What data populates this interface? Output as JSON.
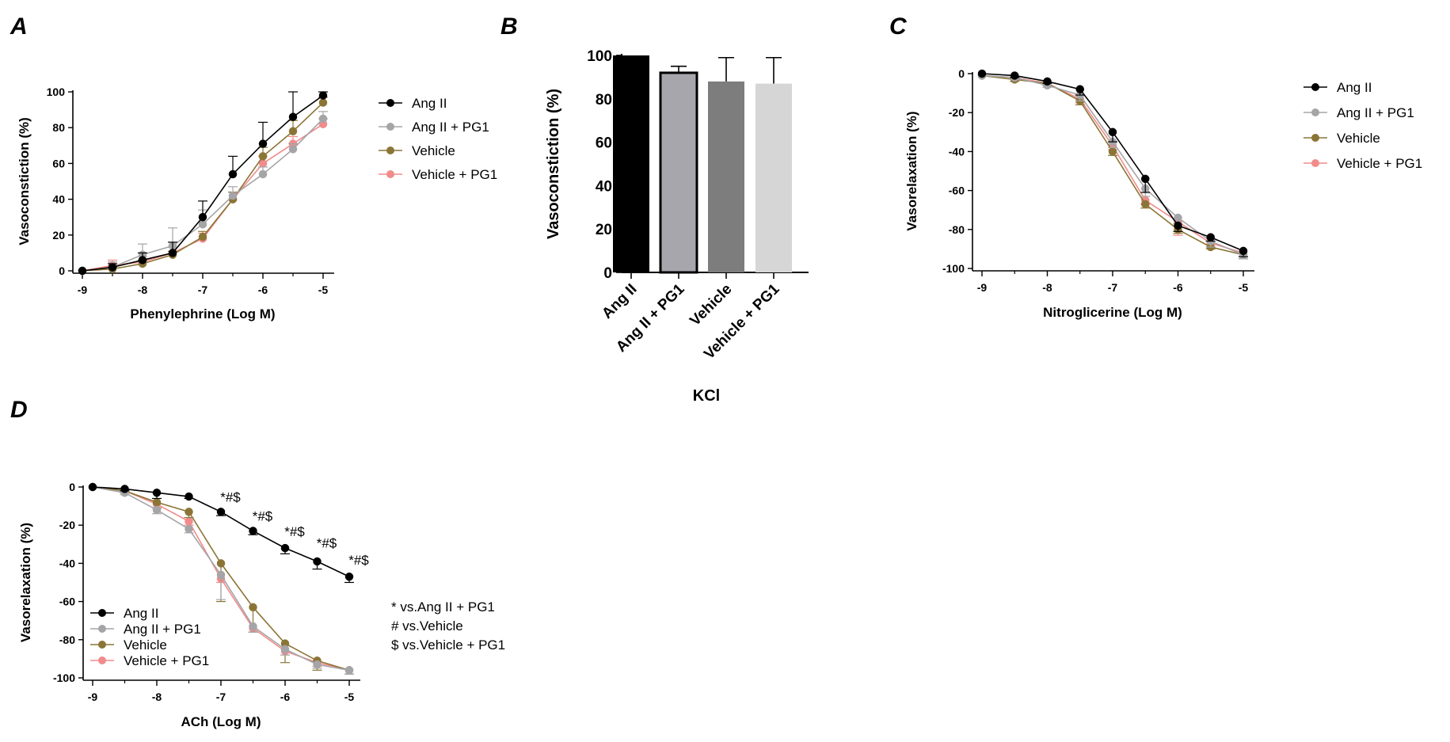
{
  "figure": {
    "colors": {
      "ang_ii": "#000000",
      "ang_ii_pg1": "#a5a5a8",
      "vehicle": "#8b7536",
      "vehicle_pg1": "#f28b8b",
      "bar_ang_ii": "#000000",
      "bar_ang_ii_pg1": "#a7a6ad",
      "bar_vehicle": "#7d7d7d",
      "bar_vehicle_pg1": "#d6d6d6"
    },
    "footnotes": [
      "* vs.Ang II + PG1",
      "# vs.Vehicle",
      "$ vs.Vehicle + PG1"
    ]
  },
  "chart_data": [
    {
      "id": "A",
      "panel_label": "A",
      "type": "line",
      "title": "",
      "xlabel": "Phenylephrine (Log M)",
      "ylabel": "Vasoconstiction (%)",
      "xlim": [
        -9,
        -5
      ],
      "ylim": [
        0,
        100
      ],
      "xticks": [
        -9,
        -8,
        -7,
        -6,
        -5
      ],
      "xtick_labels": [
        "-9",
        "-8",
        "-7",
        "-6",
        "-5"
      ],
      "yticks": [
        0,
        20,
        40,
        60,
        80,
        100
      ],
      "ytick_labels": [
        "0",
        "20",
        "40",
        "60",
        "80",
        "100"
      ],
      "legend_position": "right",
      "x": [
        -9,
        -8.5,
        -8,
        -7.5,
        -7,
        -6.5,
        -6,
        -5.5,
        -5
      ],
      "series": [
        {
          "name": "Ang II",
          "color_key": "ang_ii",
          "values": [
            0,
            2,
            6,
            10,
            30,
            54,
            71,
            86,
            98
          ],
          "err": [
            0,
            2,
            4,
            6,
            9,
            10,
            12,
            14,
            2
          ]
        },
        {
          "name": "Ang II + PG1",
          "color_key": "ang_ii_pg1",
          "values": [
            0,
            2,
            9,
            14,
            26,
            42,
            54,
            68,
            85
          ],
          "err": [
            0,
            3,
            6,
            10,
            8,
            5,
            4,
            3,
            4
          ]
        },
        {
          "name": "Vehicle",
          "color_key": "vehicle",
          "values": [
            0,
            1,
            4,
            9,
            19,
            40,
            64,
            78,
            94
          ],
          "err": [
            0,
            1,
            2,
            2,
            3,
            4,
            5,
            6,
            3
          ]
        },
        {
          "name": "Vehicle + PG1",
          "color_key": "vehicle_pg1",
          "values": [
            0,
            3,
            5,
            10,
            18,
            40,
            60,
            71,
            82
          ],
          "err": [
            0,
            3,
            3,
            3,
            3,
            4,
            4,
            4,
            3
          ]
        }
      ]
    },
    {
      "id": "B",
      "panel_label": "B",
      "type": "bar",
      "title": "",
      "xlabel": "KCl",
      "ylabel": "Vasoconstiction (%)",
      "ylim": [
        0,
        100
      ],
      "yticks": [
        0,
        20,
        40,
        60,
        80,
        100
      ],
      "ytick_labels": [
        "0",
        "20",
        "40",
        "60",
        "80",
        "100"
      ],
      "categories": [
        "Ang II",
        "Ang II + PG1",
        "Vehicle",
        "Vehicle + PG1"
      ],
      "values": [
        100,
        92,
        88,
        87
      ],
      "err": [
        0,
        3,
        11,
        12
      ],
      "bar_color_keys": [
        "bar_ang_ii",
        "bar_ang_ii_pg1",
        "bar_vehicle",
        "bar_vehicle_pg1"
      ]
    },
    {
      "id": "C",
      "panel_label": "C",
      "type": "line",
      "title": "",
      "xlabel": "Nitroglicerine (Log M)",
      "ylabel": "Vasorelaxation (%)",
      "xlim": [
        -9,
        -5
      ],
      "ylim": [
        -100,
        0
      ],
      "xticks": [
        -9,
        -8,
        -7,
        -6,
        -5
      ],
      "xtick_labels": [
        "-9",
        "-8",
        "-7",
        "-6",
        "-5"
      ],
      "yticks": [
        0,
        -20,
        -40,
        -60,
        -80,
        -100
      ],
      "ytick_labels": [
        "0",
        "-20",
        "-40",
        "-60",
        "-80",
        "-100"
      ],
      "legend_position": "right",
      "x": [
        -9,
        -8.5,
        -8,
        -7.5,
        -7,
        -6.5,
        -6,
        -5.5,
        -5
      ],
      "series": [
        {
          "name": "Ang II",
          "color_key": "ang_ii",
          "values": [
            0,
            -1,
            -4,
            -8,
            -30,
            -54,
            -78,
            -84,
            -91
          ],
          "err": [
            0,
            1,
            1,
            3,
            5,
            7,
            3,
            2,
            3
          ]
        },
        {
          "name": "Ang II + PG1",
          "color_key": "ang_ii_pg1",
          "values": [
            -1,
            -2,
            -6,
            -11,
            -35,
            -59,
            -74,
            -86,
            -93
          ],
          "err": [
            0,
            1,
            1,
            3,
            3,
            4,
            3,
            3,
            2
          ]
        },
        {
          "name": "Vehicle",
          "color_key": "vehicle",
          "values": [
            -1,
            -3,
            -5,
            -14,
            -40,
            -67,
            -80,
            -89,
            -93
          ],
          "err": [
            0,
            1,
            1,
            2,
            2,
            2,
            2,
            1,
            2
          ]
        },
        {
          "name": "Vehicle + PG1",
          "color_key": "vehicle_pg1",
          "values": [
            -1,
            -2,
            -5,
            -13,
            -37,
            -65,
            -76,
            -87,
            -92
          ],
          "err": [
            0,
            1,
            1,
            2,
            2,
            2,
            7,
            2,
            2
          ]
        }
      ]
    },
    {
      "id": "D",
      "panel_label": "D",
      "type": "line",
      "title": "",
      "xlabel": "ACh (Log M)",
      "ylabel": "Vasorelaxation (%)",
      "xlim": [
        -9,
        -5
      ],
      "ylim": [
        -100,
        0
      ],
      "xticks": [
        -9,
        -8,
        -7,
        -6,
        -5
      ],
      "xtick_labels": [
        "-9",
        "-8",
        "-7",
        "-6",
        "-5"
      ],
      "yticks": [
        0,
        -20,
        -40,
        -60,
        -80,
        -100
      ],
      "ytick_labels": [
        "0",
        "-20",
        "-40",
        "-60",
        "-80",
        "-100"
      ],
      "legend_position": "lower-left",
      "x": [
        -9,
        -8.5,
        -8,
        -7.5,
        -7,
        -6.5,
        -6,
        -5.5,
        -5
      ],
      "annotations": [
        {
          "x": -7,
          "text": "*#$"
        },
        {
          "x": -6.5,
          "text": "*#$"
        },
        {
          "x": -6,
          "text": "*#$"
        },
        {
          "x": -5.5,
          "text": "*#$"
        },
        {
          "x": -5,
          "text": "*#$"
        }
      ],
      "series": [
        {
          "name": "Ang II",
          "color_key": "ang_ii",
          "values": [
            0,
            -1,
            -3,
            -5,
            -13,
            -23,
            -32,
            -39,
            -47
          ],
          "err": [
            0,
            1,
            3,
            1,
            2,
            2,
            3,
            4,
            3
          ]
        },
        {
          "name": "Ang II + PG1",
          "color_key": "ang_ii_pg1",
          "values": [
            0,
            -3,
            -12,
            -22,
            -46,
            -73,
            -85,
            -93,
            -96
          ],
          "err": [
            0,
            1,
            2,
            2,
            13,
            3,
            3,
            2,
            2
          ]
        },
        {
          "name": "Vehicle",
          "color_key": "vehicle",
          "values": [
            0,
            -2,
            -8,
            -13,
            -40,
            -63,
            -82,
            -91,
            -96
          ],
          "err": [
            0,
            1,
            3,
            3,
            20,
            13,
            10,
            5,
            2
          ]
        },
        {
          "name": "Vehicle + PG1",
          "color_key": "vehicle_pg1",
          "values": [
            0,
            -2,
            -9,
            -18,
            -48,
            -74,
            -86,
            -92,
            -96
          ],
          "err": [
            0,
            1,
            2,
            2,
            2,
            2,
            2,
            2,
            2
          ]
        }
      ]
    }
  ]
}
